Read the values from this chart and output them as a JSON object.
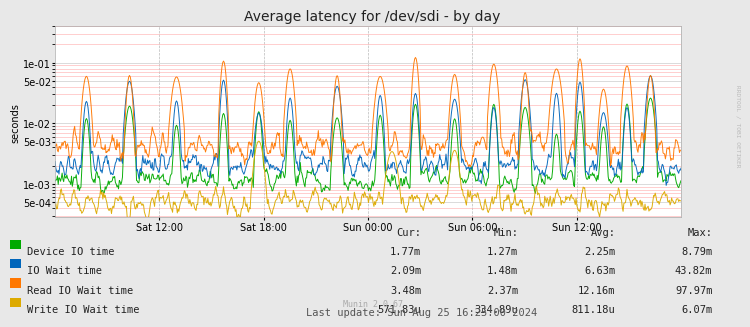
{
  "title": "Average latency for /dev/sdi - by day",
  "ylabel": "seconds",
  "yticks": [
    0.0005,
    0.001,
    0.005,
    0.01,
    0.05,
    0.1
  ],
  "ylim": [
    0.00028,
    0.4
  ],
  "xtick_labels": [
    "Sat 12:00",
    "Sat 18:00",
    "Sun 00:00",
    "Sun 06:00",
    "Sun 12:00"
  ],
  "background_color": "#e8e8e8",
  "plot_bg_color": "#ffffff",
  "grid_color_major": "#cccccc",
  "grid_color_minor": "#ffaaaa",
  "lines": [
    {
      "label": "Device IO time",
      "color": "#00aa00"
    },
    {
      "label": "IO Wait time",
      "color": "#0066bb"
    },
    {
      "label": "Read IO Wait time",
      "color": "#ff7700"
    },
    {
      "label": "Write IO Wait time",
      "color": "#ddaa00"
    }
  ],
  "legend_table": {
    "headers": [
      "Cur:",
      "Min:",
      "Avg:",
      "Max:"
    ],
    "rows": [
      [
        "1.77m",
        "1.27m",
        "2.25m",
        "8.79m"
      ],
      [
        "2.09m",
        "1.48m",
        "6.63m",
        "43.82m"
      ],
      [
        "3.48m",
        "2.37m",
        "12.16m",
        "97.97m"
      ],
      [
        "571.83u",
        "334.89u",
        "811.18u",
        "6.07m"
      ]
    ]
  },
  "footer": "Last update: Sun Aug 25 16:25:00 2024",
  "munin_version": "Munin 2.0.67",
  "watermark": "RRDTOOL / TOBI OETIKER",
  "title_fontsize": 10,
  "axis_fontsize": 7,
  "legend_fontsize": 7.5
}
